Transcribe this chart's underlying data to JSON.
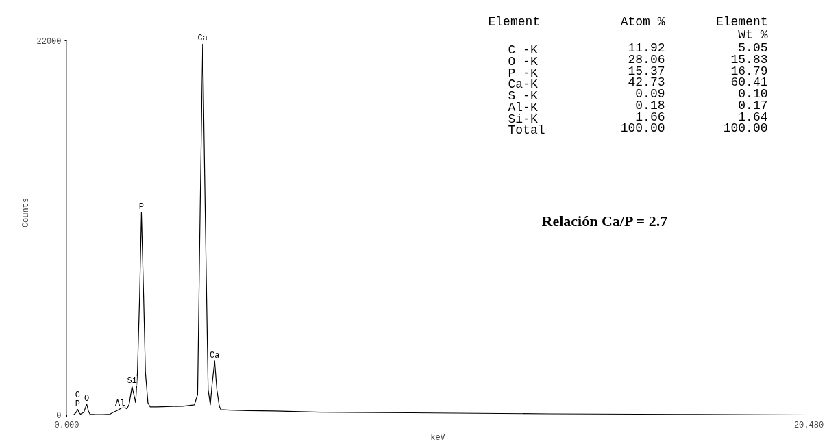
{
  "chart_data": {
    "type": "line",
    "xlabel": "keV",
    "ylabel": "Counts",
    "xlim": [
      0,
      20.48
    ],
    "ylim": [
      0,
      22000
    ],
    "xticks": [
      {
        "value": 0,
        "label": "0.000"
      },
      {
        "value": 20.48,
        "label": "20.480"
      }
    ],
    "yticks": [
      0,
      22000
    ],
    "grid": false,
    "marker": "none",
    "line_style": "solid",
    "series": [
      {
        "color": "#000000",
        "x": [
          0.19,
          0.26,
          0.3,
          0.34,
          0.38,
          0.47,
          0.55,
          0.6,
          0.64,
          0.8,
          1.0,
          1.19,
          1.29,
          1.38,
          1.47,
          1.57,
          1.66,
          1.72,
          1.8,
          1.86,
          1.9,
          1.95,
          2.01,
          2.06,
          2.12,
          2.17,
          2.24,
          2.3,
          2.5,
          2.9,
          3.2,
          3.52,
          3.61,
          3.68,
          3.75,
          3.82,
          3.9,
          3.96,
          4.01,
          4.08,
          4.14,
          4.21,
          4.25,
          4.5,
          5.0,
          5.73,
          7.0,
          9.5,
          13.3,
          17.0,
          20.48
        ],
        "values": [
          0,
          150,
          320,
          120,
          40,
          150,
          640,
          200,
          40,
          20,
          20,
          40,
          160,
          240,
          350,
          470,
          350,
          620,
          1670,
          1100,
          720,
          2500,
          7000,
          11900,
          7000,
          2500,
          700,
          470,
          470,
          500,
          510,
          590,
          1200,
          12000,
          21800,
          12000,
          1500,
          590,
          1800,
          3170,
          1500,
          500,
          310,
          280,
          250,
          230,
          160,
          120,
          60,
          30,
          0
        ]
      }
    ],
    "annotations": [
      "Element",
      "Atom %",
      "Element\nWt %",
      "C -K",
      "11.92",
      "5.05",
      "O -K",
      "28.06",
      "15.83",
      "P -K",
      "15.37",
      "16.79",
      "Ca-K",
      "42.73",
      "60.41",
      "S -K",
      "0.09",
      "0.10",
      "Al-K",
      "0.18",
      "0.17",
      "Si-K",
      "1.66",
      "1.64",
      "Total",
      "100.00",
      "100.00",
      "Relación Ca/P = 2.7",
      {
        "text": "P",
        "x": 0.3,
        "y": 320
      },
      {
        "text": "C",
        "x": 0.3,
        "y": 320
      },
      {
        "text": "O",
        "x": 0.55,
        "y": 640
      },
      {
        "text": "Al",
        "x": 1.47,
        "y": 350
      },
      {
        "text": "Si",
        "x": 1.8,
        "y": 1670
      },
      {
        "text": "P",
        "x": 2.06,
        "y": 11900
      },
      {
        "text": "Ca",
        "x": 3.75,
        "y": 21800
      },
      {
        "text": "Ca",
        "x": 4.08,
        "y": 3170
      }
    ]
  }
}
